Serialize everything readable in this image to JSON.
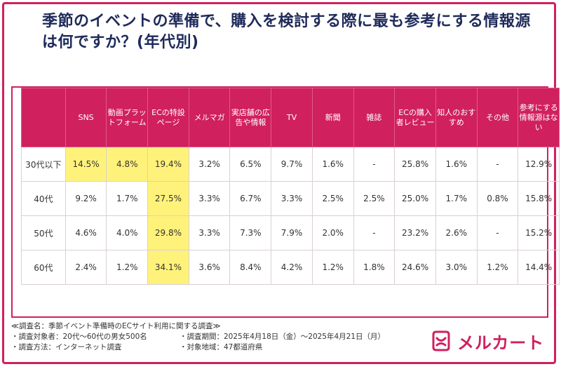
{
  "title": "季節のイベントの準備で、購入を検討する際に最も参考にする情報源は何ですか？(年代別)",
  "footer": {
    "survey_name": "≪調査名：季節イベント準備時のECサイト利用に関する調査≫",
    "target": "・調査対象者：20代〜60代の男女500名",
    "period": "・調査期間：2025年4月18日（金）〜2025年4月21日（月）",
    "method": "・調査方法：インターネット調査",
    "region": "・対象地域：47都道府県"
  },
  "logo": {
    "text": "メルカート",
    "icon": "mercart-logo-icon"
  },
  "colors": {
    "brand": "#d0205e",
    "highlight": "#fff27a",
    "title": "#1e2a5a"
  },
  "chart_data": {
    "type": "table",
    "columns": [
      "SNS",
      "動画プラットフォーム",
      "ECの特設ページ",
      "メルマガ",
      "実店舗の広告や情報",
      "TV",
      "新聞",
      "雑誌",
      "ECの購入者レビュー",
      "知人のおすすめ",
      "その他",
      "参考にする情報源はない"
    ],
    "rows": [
      {
        "label": "30代以下",
        "values": [
          "14.5%",
          "4.8%",
          "19.4%",
          "3.2%",
          "6.5%",
          "9.7%",
          "1.6%",
          "-",
          "25.8%",
          "1.6%",
          "-",
          "12.9%"
        ],
        "highlight": [
          0,
          1,
          2
        ]
      },
      {
        "label": "40代",
        "values": [
          "9.2%",
          "1.7%",
          "27.5%",
          "3.3%",
          "6.7%",
          "3.3%",
          "2.5%",
          "2.5%",
          "25.0%",
          "1.7%",
          "0.8%",
          "15.8%"
        ],
        "highlight": [
          2
        ]
      },
      {
        "label": "50代",
        "values": [
          "4.6%",
          "4.0%",
          "29.8%",
          "3.3%",
          "7.3%",
          "7.9%",
          "2.0%",
          "-",
          "23.2%",
          "2.6%",
          "-",
          "15.2%"
        ],
        "highlight": [
          2
        ]
      },
      {
        "label": "60代",
        "values": [
          "2.4%",
          "1.2%",
          "34.1%",
          "3.6%",
          "8.4%",
          "4.2%",
          "1.2%",
          "1.8%",
          "24.6%",
          "3.0%",
          "1.2%",
          "14.4%"
        ],
        "highlight": [
          2
        ]
      }
    ]
  }
}
